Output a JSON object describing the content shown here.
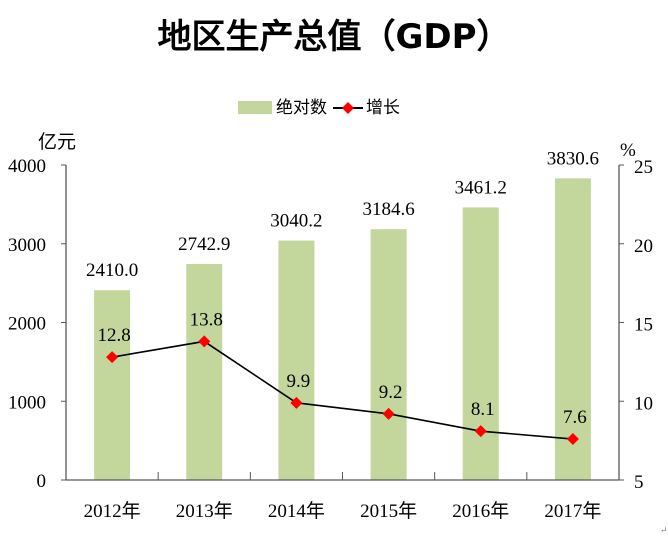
{
  "chart_data": {
    "type": "bar+line",
    "title": "地区生产总值（GDP）",
    "categories": [
      "2012年",
      "2013年",
      "2014年",
      "2015年",
      "2016年",
      "2017年"
    ],
    "series": [
      {
        "name": "绝对数",
        "type": "bar",
        "axis": "left",
        "color": "#c3d69b",
        "values": [
          2410.0,
          2742.9,
          3040.2,
          3184.6,
          3461.2,
          3830.6
        ],
        "labels": [
          "2410.0",
          "2742.9",
          "3040.2",
          "3184.6",
          "3461.2",
          "3830.6"
        ]
      },
      {
        "name": "增长",
        "type": "line",
        "axis": "right",
        "color": "#000000",
        "marker_color": "#ff0000",
        "values": [
          12.8,
          13.8,
          9.9,
          9.2,
          8.1,
          7.6
        ],
        "labels": [
          "12.8",
          "13.8",
          "9.9",
          "9.2",
          "8.1",
          "7.6"
        ]
      }
    ],
    "y_left": {
      "label": "亿元",
      "range": [
        0,
        4000
      ],
      "ticks": [
        "0",
        "1000",
        "2000",
        "3000",
        "4000"
      ]
    },
    "y_right": {
      "label": "%",
      "range": [
        5,
        25
      ],
      "ticks": [
        "5",
        "10",
        "15",
        "20",
        "25"
      ]
    },
    "grid": false,
    "legend": "top-center"
  },
  "corner_mark": "↵"
}
